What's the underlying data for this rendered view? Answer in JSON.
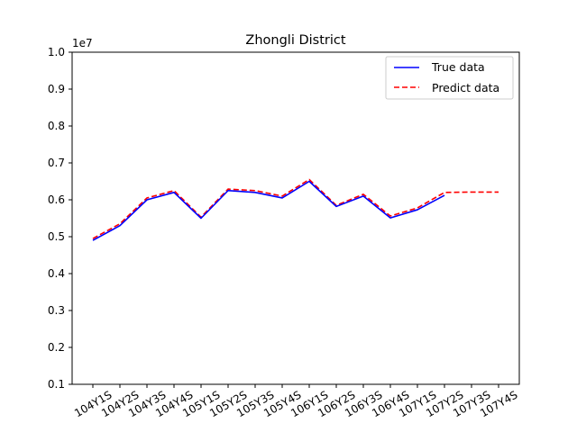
{
  "chart_data": {
    "type": "line",
    "title": "Zhongli District",
    "xlabel": "",
    "ylabel": "",
    "y_offset_text": "1e7",
    "categories": [
      "104Y1S",
      "104Y2S",
      "104Y3S",
      "104Y4S",
      "105Y1S",
      "105Y2S",
      "105Y3S",
      "105Y4S",
      "106Y1S",
      "106Y2S",
      "106Y3S",
      "106Y4S",
      "107Y1S",
      "107Y2S",
      "107Y3S",
      "107Y4S"
    ],
    "yticks": [
      0.1,
      0.2,
      0.3,
      0.4,
      0.5,
      0.6,
      0.7,
      0.8,
      0.9,
      1.0
    ],
    "ytick_labels": [
      "0.1",
      "0.2",
      "0.3",
      "0.4",
      "0.5",
      "0.6",
      "0.7",
      "0.8",
      "0.9",
      "1.0"
    ],
    "ylim": [
      0.1,
      1.0
    ],
    "grid": false,
    "legend_position": "top-right",
    "series": [
      {
        "name": "True data",
        "color": "#0000ff",
        "style": "solid",
        "values": [
          0.49,
          0.53,
          0.6,
          0.62,
          0.55,
          0.625,
          0.62,
          0.605,
          0.65,
          0.582,
          0.61,
          0.551,
          0.573,
          0.612,
          null,
          null
        ]
      },
      {
        "name": "Predict data",
        "color": "#ff0000",
        "style": "dashed",
        "values": [
          0.495,
          0.535,
          0.605,
          0.625,
          0.553,
          0.629,
          0.625,
          0.61,
          0.655,
          0.585,
          0.615,
          0.556,
          0.578,
          0.62,
          0.621,
          0.621
        ]
      }
    ]
  }
}
